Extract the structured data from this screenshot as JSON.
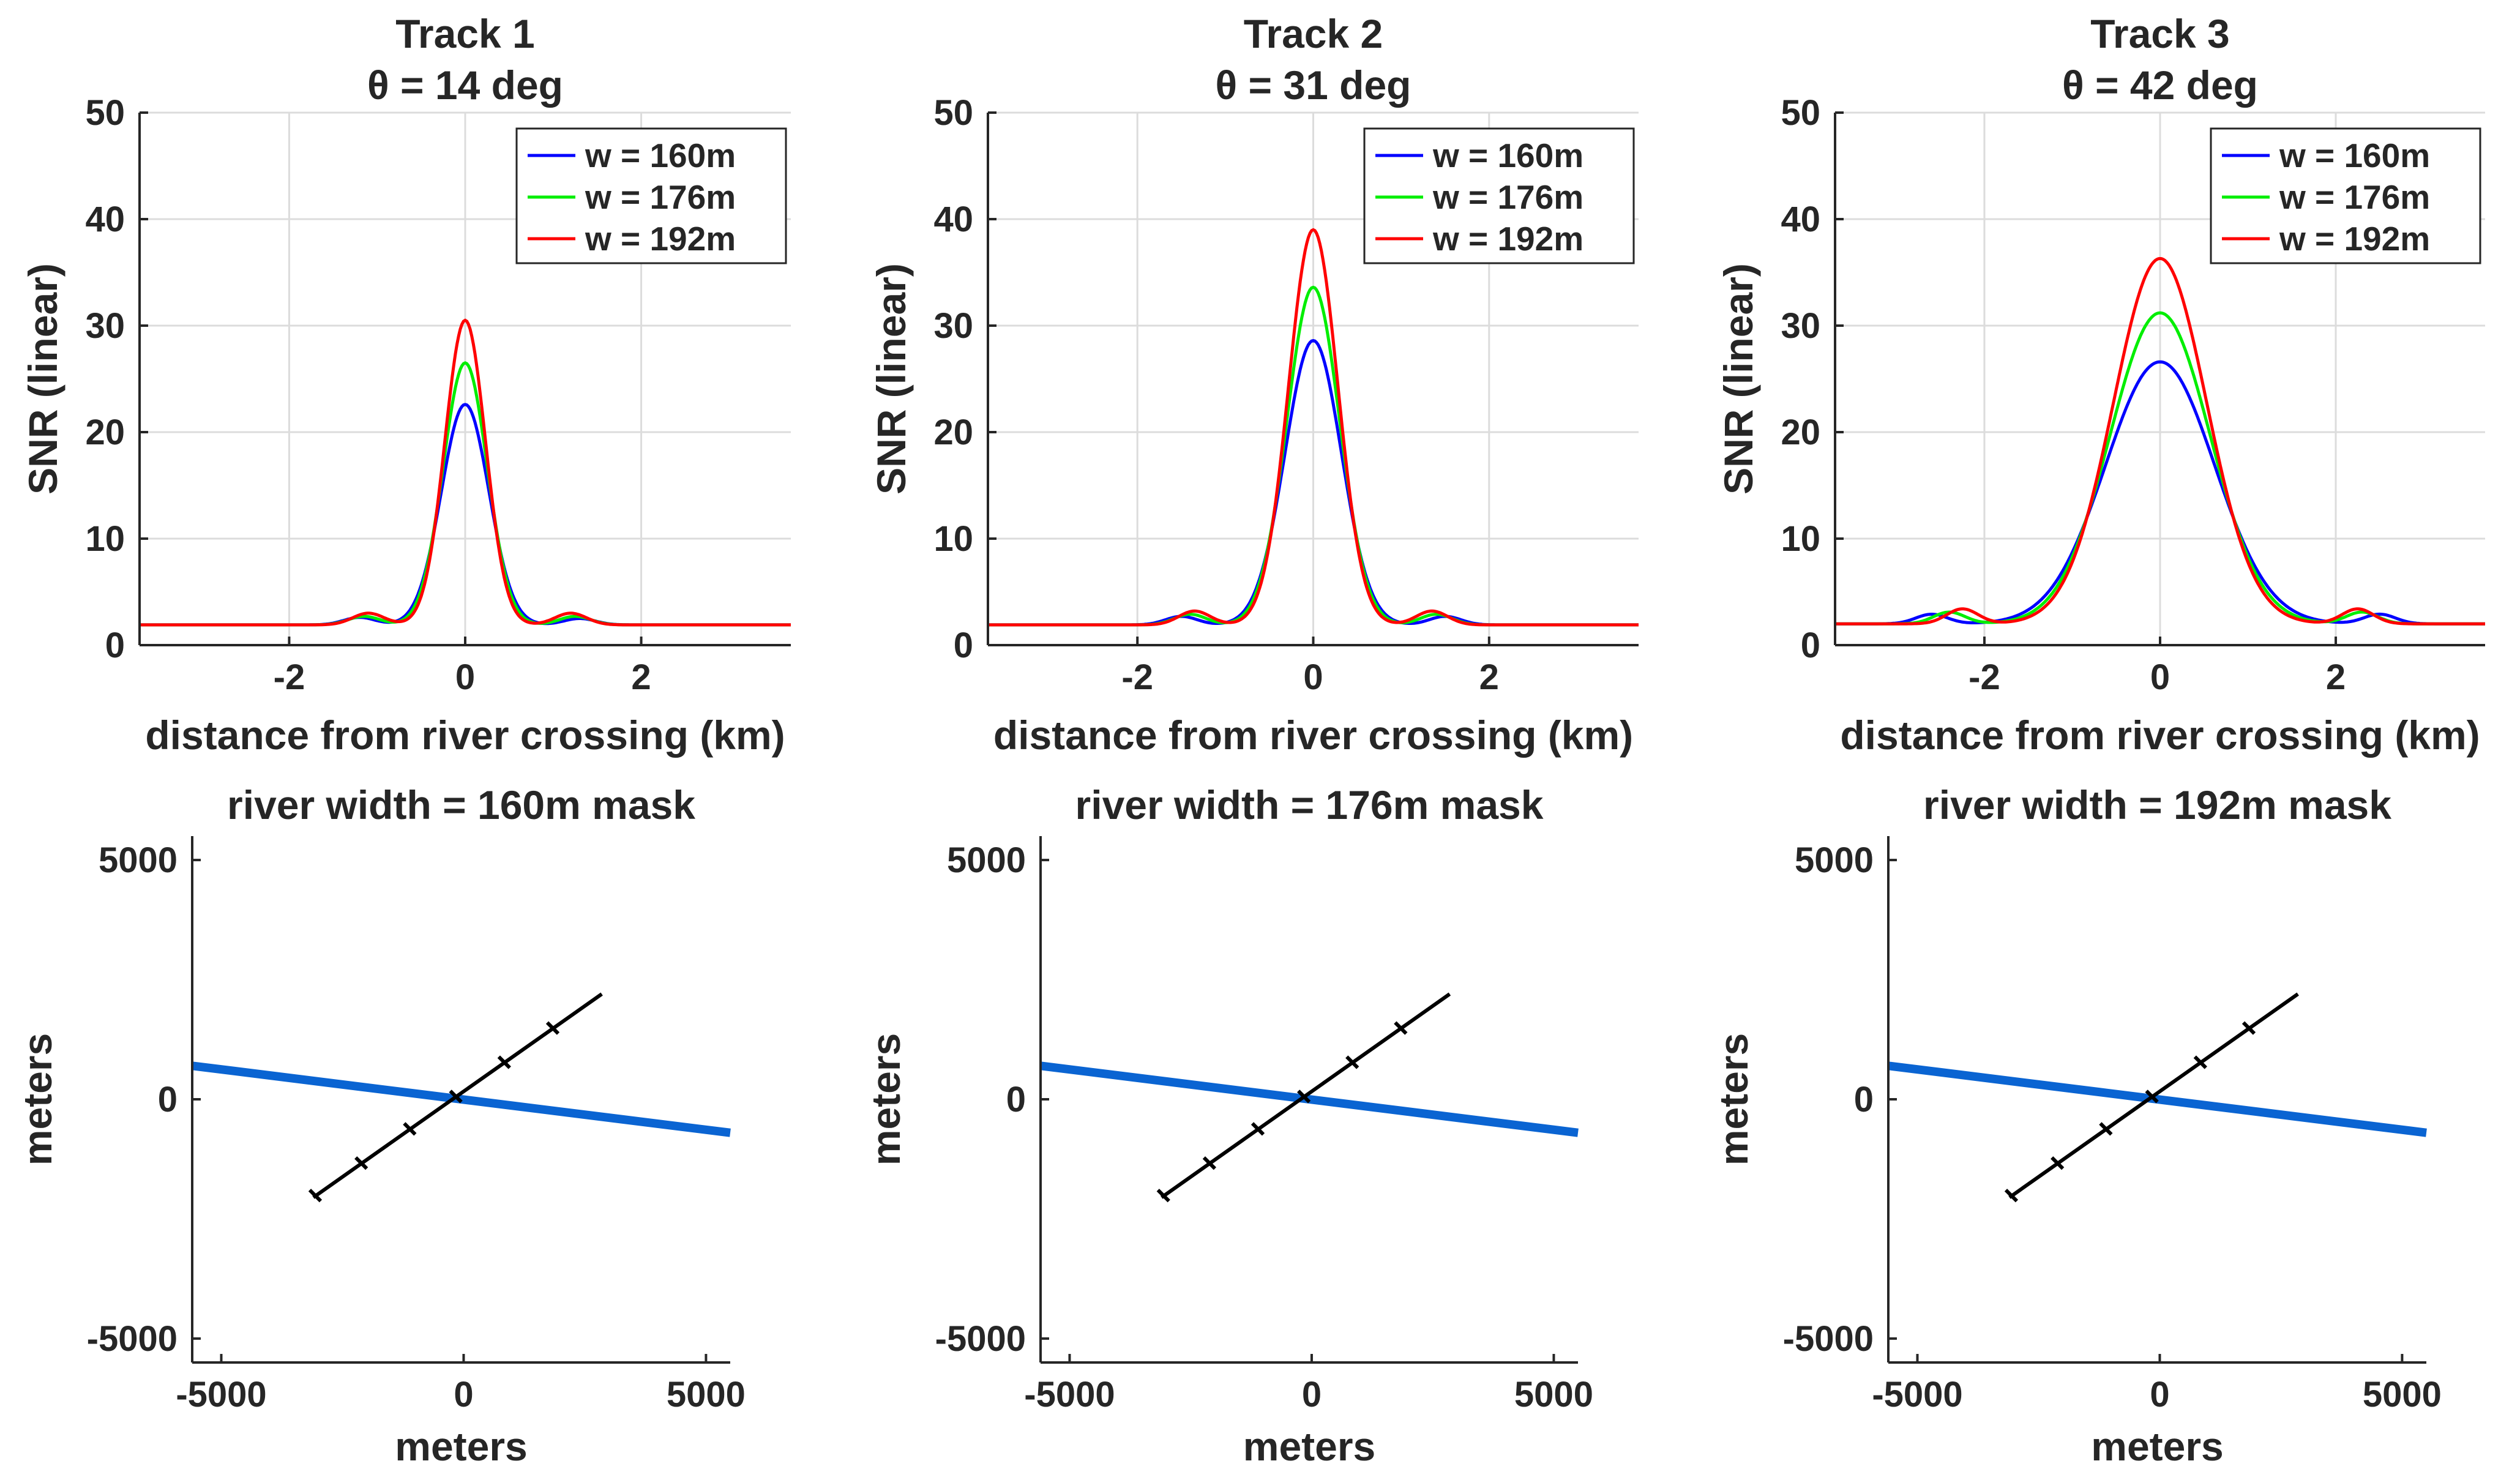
{
  "chart_data": [
    {
      "type": "line",
      "title": [
        "Track 1",
        "θ = 14 deg"
      ],
      "xlabel": "distance from river crossing (km)",
      "ylabel": "SNR (linear)",
      "xlim": [
        -3.7,
        3.7
      ],
      "ylim": [
        0,
        50
      ],
      "xticks": [
        -2,
        0,
        2
      ],
      "xtick_labels": [
        "-2",
        "0",
        "2"
      ],
      "yticks": [
        0,
        10,
        20,
        30,
        40,
        50
      ],
      "ytick_labels": [
        "0",
        "10",
        "20",
        "30",
        "40",
        "50"
      ],
      "grid": true,
      "legend_position": "top-right",
      "series": [
        {
          "name": "w = 160m",
          "color": "#0000ff",
          "peak": 20.7,
          "sigma": 0.27,
          "baseline": 1.9,
          "side_lobes": [
            {
              "x": -1.2,
              "h": 0.7
            },
            {
              "x": 1.3,
              "h": 0.6
            }
          ]
        },
        {
          "name": "w = 176m",
          "color": "#00ee00",
          "peak": 24.6,
          "sigma": 0.25,
          "baseline": 1.9,
          "side_lobes": [
            {
              "x": -1.15,
              "h": 0.8
            },
            {
              "x": 1.25,
              "h": 0.8
            }
          ]
        },
        {
          "name": "w = 192m",
          "color": "#ff0000",
          "peak": 28.6,
          "sigma": 0.23,
          "baseline": 1.9,
          "side_lobes": [
            {
              "x": -1.1,
              "h": 1.1
            },
            {
              "x": 1.2,
              "h": 1.1
            }
          ]
        }
      ]
    },
    {
      "type": "line",
      "title": [
        "Track 2",
        "θ = 31 deg"
      ],
      "xlabel": "distance from river crossing (km)",
      "ylabel": "SNR (linear)",
      "xlim": [
        -3.7,
        3.7
      ],
      "ylim": [
        0,
        50
      ],
      "xticks": [
        -2,
        0,
        2
      ],
      "xtick_labels": [
        "-2",
        "0",
        "2"
      ],
      "yticks": [
        0,
        10,
        20,
        30,
        40,
        50
      ],
      "ytick_labels": [
        "0",
        "10",
        "20",
        "30",
        "40",
        "50"
      ],
      "grid": true,
      "legend_position": "top-right",
      "series": [
        {
          "name": "w = 160m",
          "color": "#0000ff",
          "peak": 26.7,
          "sigma": 0.32,
          "baseline": 1.9,
          "side_lobes": [
            {
              "x": -1.5,
              "h": 0.8
            },
            {
              "x": 1.5,
              "h": 0.8
            }
          ]
        },
        {
          "name": "w = 176m",
          "color": "#00ee00",
          "peak": 31.7,
          "sigma": 0.3,
          "baseline": 1.9,
          "side_lobes": [
            {
              "x": -1.4,
              "h": 1.0
            },
            {
              "x": 1.4,
              "h": 1.0
            }
          ]
        },
        {
          "name": "w = 192m",
          "color": "#ff0000",
          "peak": 37.1,
          "sigma": 0.28,
          "baseline": 1.9,
          "side_lobes": [
            {
              "x": -1.35,
              "h": 1.3
            },
            {
              "x": 1.35,
              "h": 1.3
            }
          ]
        }
      ]
    },
    {
      "type": "line",
      "title": [
        "Track 3",
        "θ = 42 deg"
      ],
      "xlabel": "distance from river crossing (km)",
      "ylabel": "SNR (linear)",
      "xlim": [
        -3.7,
        3.7
      ],
      "ylim": [
        0,
        50
      ],
      "xticks": [
        -2,
        0,
        2
      ],
      "xtick_labels": [
        "-2",
        "0",
        "2"
      ],
      "yticks": [
        0,
        10,
        20,
        30,
        40,
        50
      ],
      "ytick_labels": [
        "0",
        "10",
        "20",
        "30",
        "40",
        "50"
      ],
      "grid": true,
      "legend_position": "top-right",
      "series": [
        {
          "name": "w = 160m",
          "color": "#0000ff",
          "peak": 24.6,
          "sigma": 0.62,
          "baseline": 2.0,
          "side_lobes": [
            {
              "x": -2.6,
              "h": 0.9
            },
            {
              "x": 2.5,
              "h": 0.9
            }
          ]
        },
        {
          "name": "w = 176m",
          "color": "#00ee00",
          "peak": 29.2,
          "sigma": 0.57,
          "baseline": 2.0,
          "side_lobes": [
            {
              "x": -2.4,
              "h": 1.1
            },
            {
              "x": 2.3,
              "h": 1.1
            }
          ]
        },
        {
          "name": "w = 192m",
          "color": "#ff0000",
          "peak": 34.3,
          "sigma": 0.53,
          "baseline": 2.0,
          "side_lobes": [
            {
              "x": -2.25,
              "h": 1.4
            },
            {
              "x": 2.25,
              "h": 1.4
            }
          ]
        }
      ]
    },
    {
      "type": "line",
      "title": "river width = 160m mask",
      "xlabel": "meters",
      "ylabel": "meters",
      "xlim": [
        -5600,
        5500
      ],
      "ylim": [
        -5500,
        5500
      ],
      "xticks": [
        -5000,
        0,
        5000
      ],
      "xtick_labels": [
        "-5000",
        "0",
        "5000"
      ],
      "yticks": [
        -5000,
        0,
        5000
      ],
      "ytick_labels": [
        "-5000",
        "0",
        "5000"
      ],
      "grid": false,
      "river": {
        "color": "#0a64d2",
        "x": [
          -5600,
          5500
        ],
        "y": [
          700,
          -700
        ]
      },
      "track": {
        "color": "#000000",
        "x": [
          -3100,
          2850
        ],
        "y": [
          -2050,
          2200
        ],
        "markers_x": [
          -3100,
          -2150,
          -1150,
          -200,
          800,
          1800
        ]
      }
    },
    {
      "type": "line",
      "title": "river width = 176m mask",
      "xlabel": "meters",
      "ylabel": "meters",
      "xlim": [
        -5600,
        5500
      ],
      "ylim": [
        -5500,
        5500
      ],
      "xticks": [
        -5000,
        0,
        5000
      ],
      "xtick_labels": [
        "-5000",
        "0",
        "5000"
      ],
      "yticks": [
        -5000,
        0,
        5000
      ],
      "ytick_labels": [
        "-5000",
        "0",
        "5000"
      ],
      "grid": false,
      "river": {
        "color": "#0a64d2",
        "x": [
          -5600,
          5500
        ],
        "y": [
          700,
          -700
        ]
      },
      "track": {
        "color": "#000000",
        "x": [
          -3100,
          2850
        ],
        "y": [
          -2050,
          2200
        ],
        "markers_x": [
          -3100,
          -2150,
          -1150,
          -200,
          800,
          1800
        ]
      }
    },
    {
      "type": "line",
      "title": "river width = 192m mask",
      "xlabel": "meters",
      "ylabel": "meters",
      "xlim": [
        -5600,
        5500
      ],
      "ylim": [
        -5500,
        5500
      ],
      "xticks": [
        -5000,
        0,
        5000
      ],
      "xtick_labels": [
        "-5000",
        "0",
        "5000"
      ],
      "yticks": [
        -5000,
        0,
        5000
      ],
      "ytick_labels": [
        "-5000",
        "0",
        "5000"
      ],
      "grid": false,
      "river": {
        "color": "#0a64d2",
        "x": [
          -5600,
          5500
        ],
        "y": [
          700,
          -700
        ]
      },
      "track": {
        "color": "#000000",
        "x": [
          -3100,
          2850
        ],
        "y": [
          -2050,
          2200
        ],
        "markers_x": [
          -3100,
          -2150,
          -1150,
          -200,
          800,
          1800
        ]
      }
    }
  ]
}
